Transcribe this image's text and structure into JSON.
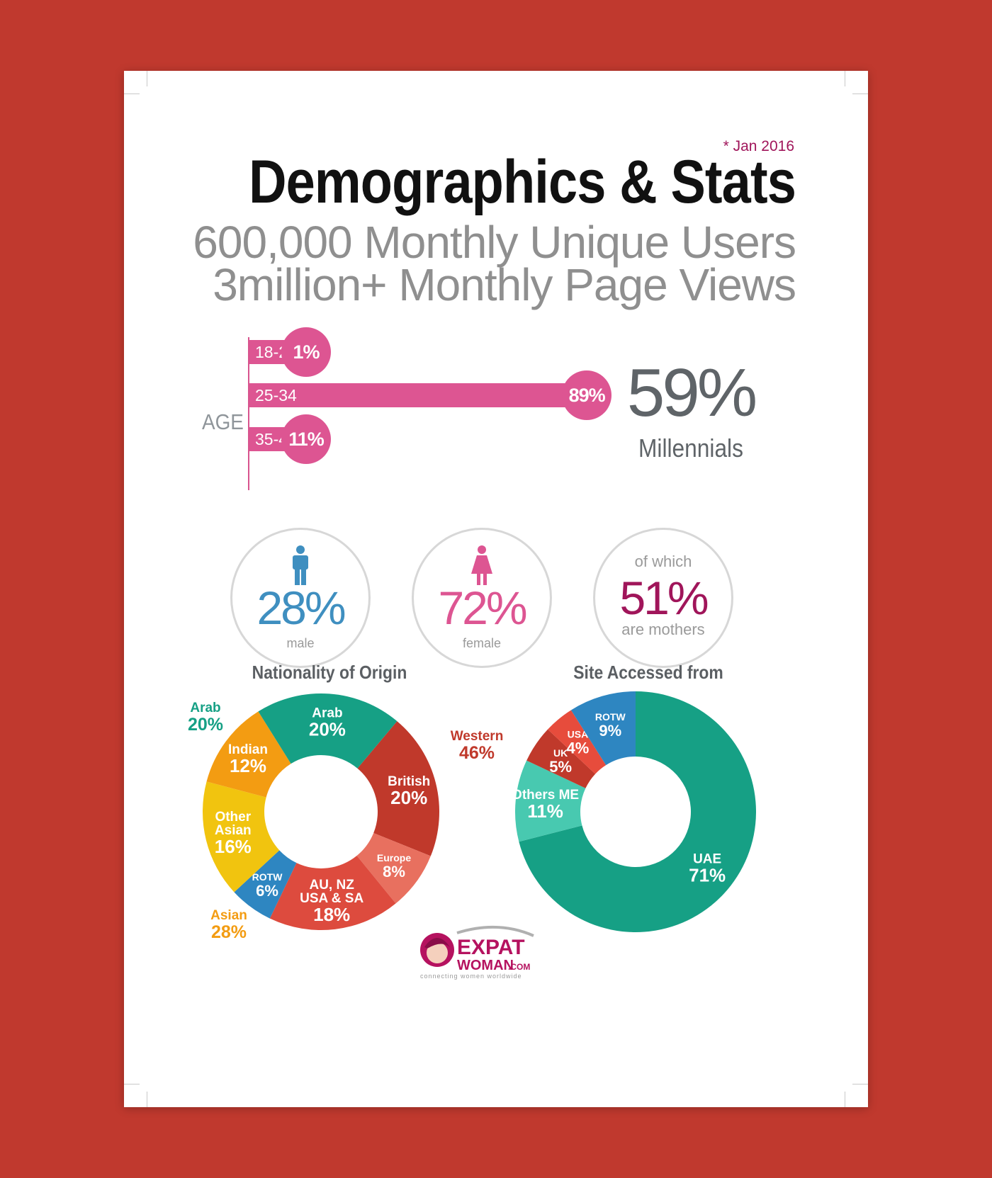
{
  "header": {
    "date_note": "* Jan 2016",
    "title": "Demographics & Stats",
    "subtitle_1": "600,000 Monthly Unique Users",
    "subtitle_2": "3million+ Monthly Page Views"
  },
  "stats": {
    "millennials_pct": "59%",
    "millennials_label": "Millennials",
    "male_pct": "28%",
    "male_label": "male",
    "female_pct": "72%",
    "female_label": "female",
    "mothers_prefix": "of which",
    "mothers_pct": "51%",
    "mothers_label": "are mothers"
  },
  "colors": {
    "pink": "#dd5592",
    "blue_male": "#3f8fc0",
    "magenta_mothers": "#a0155a",
    "teal": "#16a085",
    "red": "#c0392b",
    "orange": "#f39c12",
    "yellow": "#f1c40f"
  },
  "logo": {
    "brand_1": "EXPAT",
    "brand_2": "WOMAN",
    "brand_3": ".COM",
    "tagline": "connecting women worldwide"
  },
  "chart_data": [
    {
      "type": "bar",
      "title": "",
      "ylabel": "AGE",
      "categories": [
        "18-24",
        "25-34",
        "35-44"
      ],
      "values": [
        1,
        89,
        11
      ],
      "labels": [
        "1%",
        "89%",
        "11%"
      ],
      "xlim": [
        0,
        100
      ]
    },
    {
      "type": "pie",
      "title": "Nationality of Origin",
      "donut": true,
      "slices": [
        {
          "line1": "British",
          "line2": "",
          "pct": "20%",
          "value": 20,
          "color": "#c0392b"
        },
        {
          "line1": "Europe",
          "line2": "",
          "pct": "8%",
          "value": 8,
          "color": "#e8705f"
        },
        {
          "line1": "AU, NZ",
          "line2": "USA & SA",
          "pct": "18%",
          "value": 18,
          "color": "#dd4b3e"
        },
        {
          "line1": "ROTW",
          "line2": "",
          "pct": "6%",
          "value": 6,
          "color": "#2e86c1"
        },
        {
          "line1": "Other",
          "line2": "Asian",
          "pct": "16%",
          "value": 16,
          "color": "#f1c40f"
        },
        {
          "line1": "Indian",
          "line2": "",
          "pct": "12%",
          "value": 12,
          "color": "#f39c12"
        },
        {
          "line1": "Arab",
          "line2": "",
          "pct": "20%",
          "value": 20,
          "color": "#16a085"
        }
      ],
      "groups": [
        {
          "label": "Western",
          "pct": "46%",
          "color": "#c0392b"
        },
        {
          "label": "Asian",
          "pct": "28%",
          "color": "#f39c12"
        },
        {
          "label": "Arab",
          "pct": "20%",
          "color": "#16a085"
        }
      ]
    },
    {
      "type": "pie",
      "title": "Site Accessed from",
      "donut": true,
      "slices": [
        {
          "line1": "UAE",
          "line2": "",
          "pct": "71%",
          "value": 71,
          "color": "#16a085"
        },
        {
          "line1": "Others ME",
          "line2": "",
          "pct": "11%",
          "value": 11,
          "color": "#48c9b0"
        },
        {
          "line1": "UK",
          "line2": "",
          "pct": "5%",
          "value": 5,
          "color": "#c0392b"
        },
        {
          "line1": "USA",
          "line2": "",
          "pct": "4%",
          "value": 4,
          "color": "#e74c3c"
        },
        {
          "line1": "ROTW",
          "line2": "",
          "pct": "9%",
          "value": 9,
          "color": "#2e86c1"
        }
      ]
    }
  ]
}
